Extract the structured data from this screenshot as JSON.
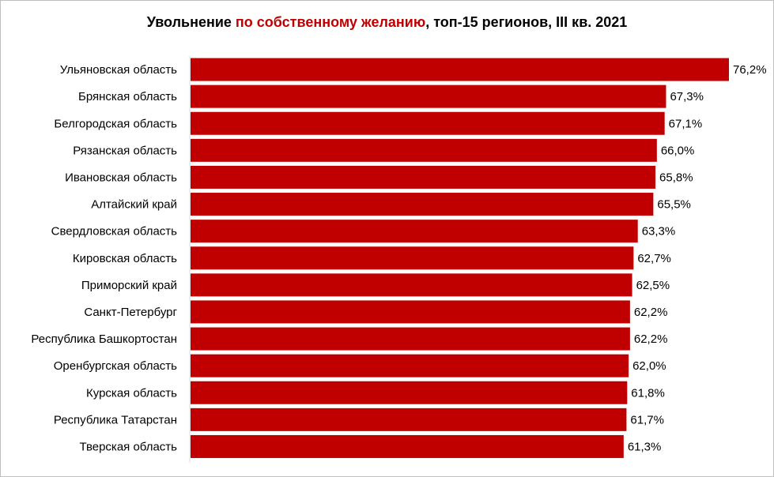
{
  "chart_data": {
    "type": "bar",
    "orientation": "horizontal",
    "title_parts": [
      {
        "text": "Увольнение ",
        "color": "#000000"
      },
      {
        "text": "по собственному желанию",
        "color": "#c00000"
      },
      {
        "text": ", топ-15 регионов, III кв. 2021",
        "color": "#000000"
      }
    ],
    "categories": [
      "Ульяновская область",
      "Брянская область",
      "Белгородская область",
      "Рязанская область",
      "Ивановская область",
      "Алтайский край",
      "Свердловская область",
      "Кировская область",
      "Приморский край",
      "Санкт-Петербург",
      "Республика Башкортостан",
      "Оренбургская область",
      "Курская область",
      "Республика Татарстан",
      "Тверская область"
    ],
    "values": [
      76.2,
      67.3,
      67.1,
      66.0,
      65.8,
      65.5,
      63.3,
      62.7,
      62.5,
      62.2,
      62.2,
      62.0,
      61.8,
      61.7,
      61.3
    ],
    "value_labels": [
      "76,2%",
      "67,3%",
      "67,1%",
      "66,0%",
      "65,8%",
      "65,5%",
      "63,3%",
      "62,7%",
      "62,5%",
      "62,2%",
      "62,2%",
      "62,0%",
      "61,8%",
      "61,7%",
      "61,3%"
    ],
    "xlim": [
      0,
      76.2
    ],
    "bar_color": "#c00000",
    "grid": false,
    "legend": "none"
  }
}
